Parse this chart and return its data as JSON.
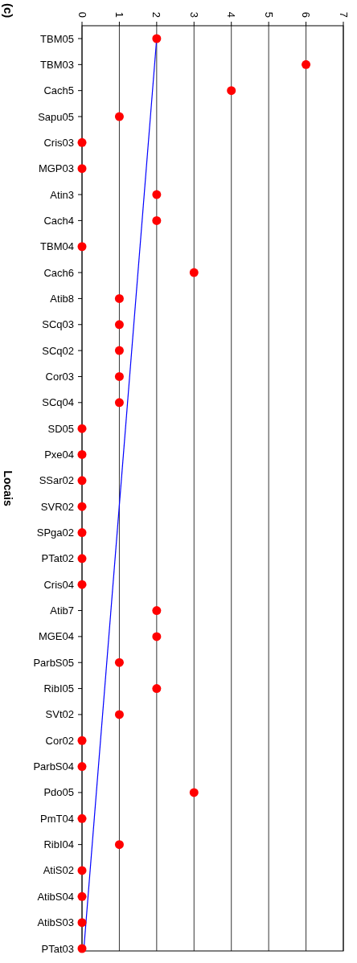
{
  "chart_data": {
    "type": "scatter",
    "title": "(c)",
    "ylabel": "Locais",
    "orientation": "horizontal",
    "categories": [
      "TBM05",
      "TBM03",
      "Cach5",
      "Sapu05",
      "Cris03",
      "MGP03",
      "Atin3",
      "Cach4",
      "TBM04",
      "Cach6",
      "Atib8",
      "SCq03",
      "SCq02",
      "Cor03",
      "SCq04",
      "SD05",
      "Pxe04",
      "SSar02",
      "SVR02",
      "SPga02",
      "PTat02",
      "Cris04",
      "Atib7",
      "MGE04",
      "ParbS05",
      "RibI05",
      "SVt02",
      "Cor02",
      "ParbS04",
      "Pdo05",
      "PmT04",
      "RibI04",
      "AtiS02",
      "AtibS04",
      "AtibS03",
      "PTat03"
    ],
    "series": [
      {
        "color": "#ff0000",
        "marker": "circle",
        "values": [
          2,
          6,
          4,
          1,
          0,
          0,
          2,
          2,
          0,
          3,
          1,
          1,
          1,
          1,
          1,
          0,
          0,
          0,
          0,
          0,
          0,
          0,
          2,
          2,
          1,
          2,
          1,
          0,
          0,
          3,
          0,
          1,
          0,
          0,
          0,
          0
        ]
      },
      {
        "type": "line",
        "color": "#0000ff",
        "marker": "none",
        "x": [
          "TBM05",
          "PTat03"
        ],
        "values": [
          2.0,
          0.05
        ]
      }
    ],
    "xlim": [
      0,
      7
    ],
    "xticks": [
      0,
      1,
      2,
      3,
      4,
      5,
      6,
      7
    ],
    "grid": "x"
  }
}
